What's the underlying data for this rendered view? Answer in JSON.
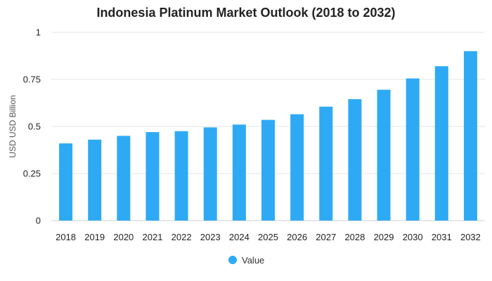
{
  "chart_data": {
    "type": "bar",
    "title": "Indonesia Platinum Market Outlook (2018 to 2032)",
    "xlabel": "",
    "ylabel": "USD USD Billion",
    "categories": [
      "2018",
      "2019",
      "2020",
      "2021",
      "2022",
      "2023",
      "2024",
      "2025",
      "2026",
      "2027",
      "2028",
      "2029",
      "2030",
      "2031",
      "2032"
    ],
    "series": [
      {
        "name": "Value",
        "values": [
          0.41,
          0.43,
          0.45,
          0.47,
          0.475,
          0.495,
          0.51,
          0.535,
          0.565,
          0.605,
          0.645,
          0.695,
          0.755,
          0.82,
          0.9
        ]
      }
    ],
    "ylim": [
      0,
      1
    ],
    "yticks": [
      "0",
      "0.25",
      "0.5",
      "0.75",
      "1"
    ],
    "ytick_values": [
      0,
      0.25,
      0.5,
      0.75,
      1
    ],
    "grid": true,
    "legend_position": "bottom-center",
    "bar_color": "#2EAAF5"
  }
}
